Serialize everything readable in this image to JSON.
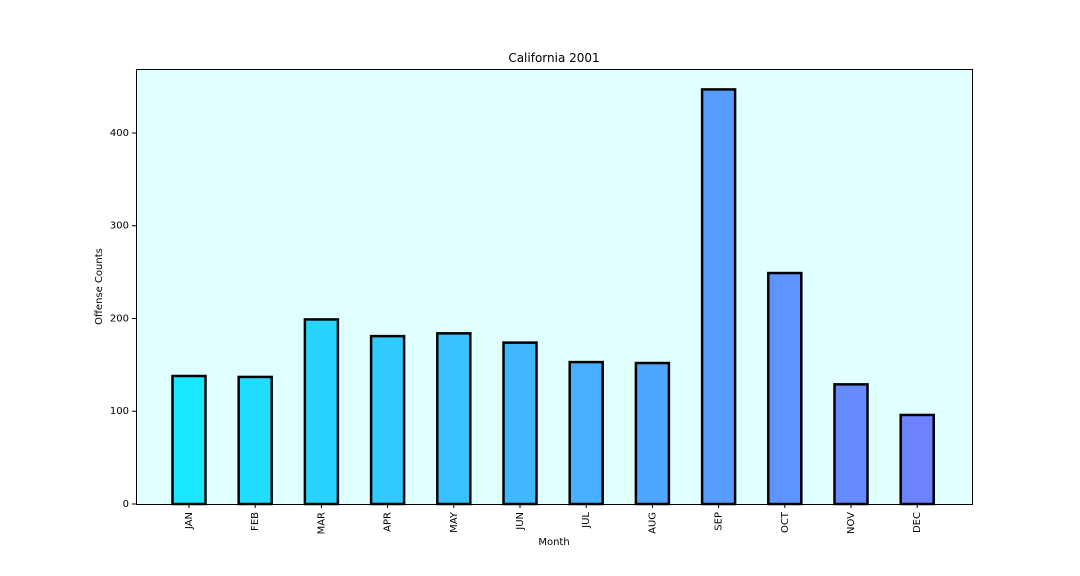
{
  "chart_data": {
    "type": "bar",
    "title": "California 2001",
    "xlabel": "Month",
    "ylabel": "Offense Counts",
    "categories": [
      "JAN",
      "FEB",
      "MAR",
      "APR",
      "MAY",
      "JUN",
      "JUL",
      "AUG",
      "SEP",
      "OCT",
      "NOV",
      "DEC"
    ],
    "values": [
      138,
      137,
      199,
      181,
      184,
      174,
      153,
      152,
      447,
      249,
      129,
      96
    ],
    "ylim": [
      0,
      469
    ],
    "yticks": [
      0,
      100,
      200,
      300,
      400
    ],
    "grid": false,
    "legend": "none",
    "colors": {
      "plot_background": "#e0ffff",
      "bar_edge": "#000000",
      "bars": [
        "#19e6ff",
        "#20ddff",
        "#29d3ff",
        "#30caff",
        "#38c1ff",
        "#40b8ff",
        "#47afff",
        "#4fa6ff",
        "#579dff",
        "#5e94ff",
        "#668bff",
        "#6d82ff"
      ]
    }
  }
}
